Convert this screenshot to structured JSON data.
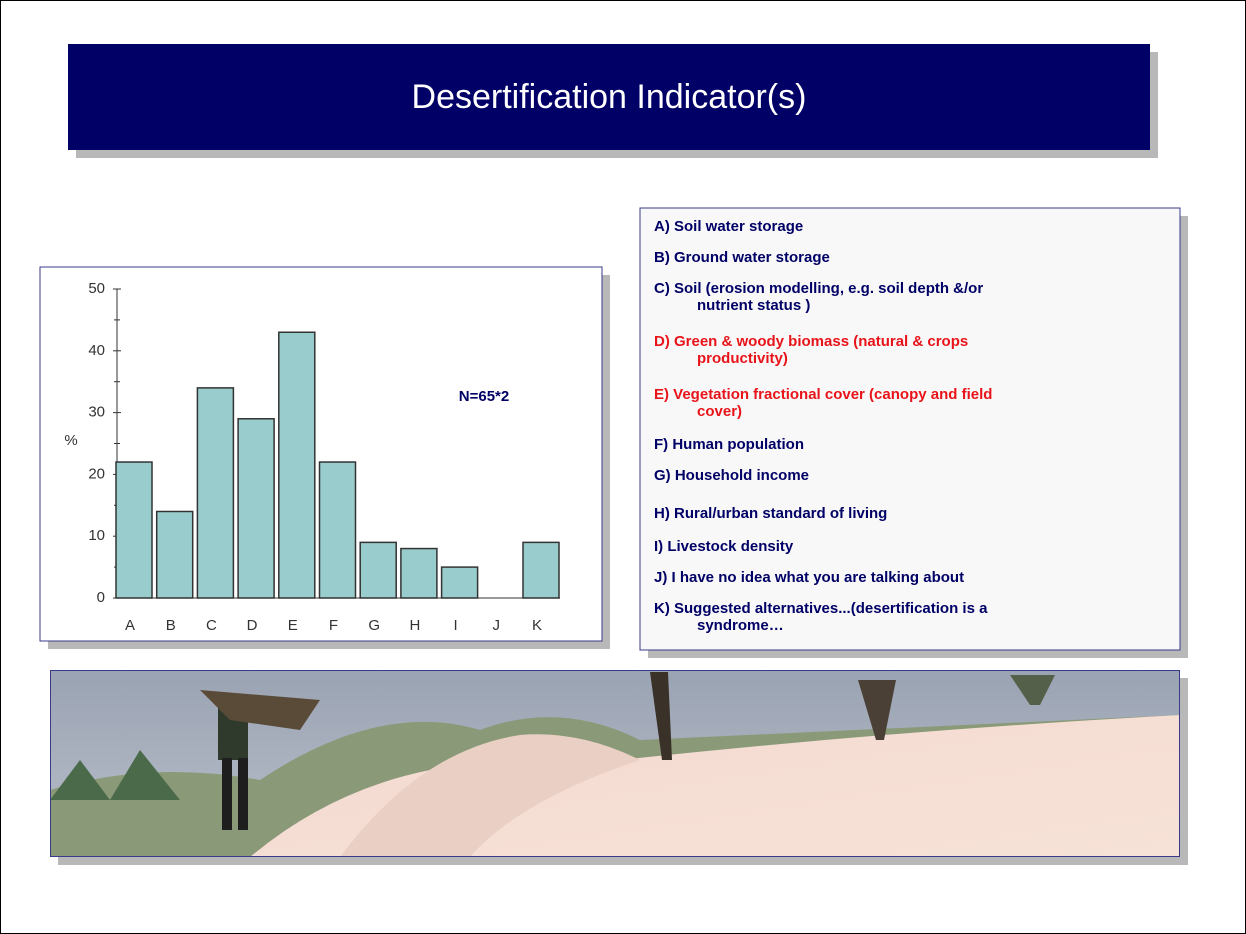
{
  "title": "Desertification Indicator(s)",
  "chart_data": {
    "type": "bar",
    "categories": [
      "A",
      "B",
      "C",
      "D",
      "E",
      "F",
      "G",
      "H",
      "I",
      "J",
      "K"
    ],
    "values": [
      22,
      14,
      34,
      29,
      43,
      22,
      9,
      8,
      5,
      0,
      9
    ],
    "color": "#99cccc",
    "ylabel": "%",
    "annotation": "N=65*2",
    "ylim": [
      0,
      50
    ],
    "yticks": [
      0,
      10,
      20,
      30,
      40,
      50
    ],
    "yminor": [
      5,
      15,
      25,
      35,
      45
    ]
  },
  "list": {
    "items": [
      {
        "lines": [
          "A) Soil water storage"
        ],
        "color": "#000066"
      },
      {
        "lines": [
          "B) Ground water storage"
        ],
        "color": "#000066"
      },
      {
        "lines": [
          "C) Soil (erosion modelling, e.g. soil depth &/or",
          "nutrient status )"
        ],
        "color": "#000066"
      },
      {
        "lines": [
          "D) Green & woody biomass (natural & crops",
          "productivity)"
        ],
        "color": "#e8141a"
      },
      {
        "lines": [
          "E) Vegetation fractional cover (canopy and field",
          "cover)"
        ],
        "color": "#e8141a"
      },
      {
        "lines": [
          "F) Human population"
        ],
        "color": "#000066"
      },
      {
        "lines": [
          "G) Household income"
        ],
        "color": "#000066"
      },
      {
        "lines": [
          "H) Rural/urban standard of living"
        ],
        "color": "#000066"
      },
      {
        "lines": [
          "I) Livestock density"
        ],
        "color": "#000066"
      },
      {
        "lines": [
          "J) I have no idea what you are talking about"
        ],
        "color": "#000066"
      },
      {
        "lines": [
          "K) Suggested alternatives...(desertification is a",
          "syndrome…"
        ],
        "color": "#000066"
      }
    ]
  }
}
